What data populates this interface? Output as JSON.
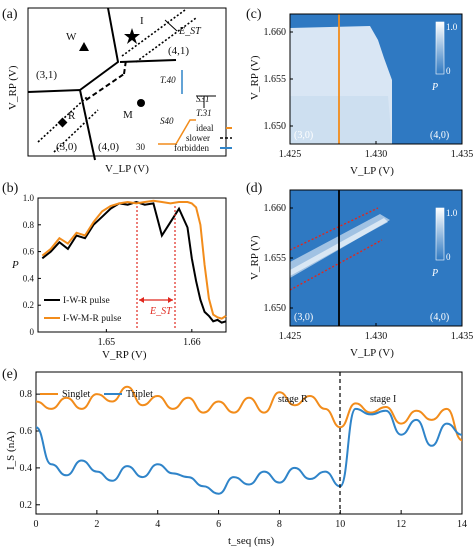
{
  "panels": {
    "a": {
      "label": "(a)",
      "xlabel": "V_LP (V)",
      "ylabel": "V_RP (V)",
      "regions": [
        "(3,1)",
        "(3,0)",
        "(4,0)",
        "(4,1)"
      ],
      "points": [
        "W",
        "I",
        "R",
        "M"
      ],
      "est_label": "E_ST",
      "pulse_labels": [
        "T.40",
        "S31",
        "T.31",
        "S40",
        "30"
      ],
      "legend": [
        "ideal",
        "slower",
        "forbidden"
      ],
      "legend_colors": [
        "#f28c1b",
        "#000000",
        "#2f84c9"
      ]
    },
    "b": {
      "label": "(b)",
      "ylabel": "P",
      "xlabel": "V_RP (V)",
      "legend": [
        "I-W-R pulse",
        "I-W-M-R pulse"
      ],
      "est_label": "E_ST",
      "xticks": [
        "1.65",
        "1.66"
      ],
      "yticks": [
        "0",
        "0.2",
        "0.4",
        "0.6",
        "0.8",
        "1.0"
      ]
    },
    "c": {
      "label": "(c)",
      "ylabel": "V_RP (V)",
      "xlabel": "V_LP (V)",
      "yticks": [
        "1.660",
        "1.655",
        "1.650"
      ],
      "xticks": [
        "1.425",
        "1.430",
        "1.435"
      ],
      "corner_labels": [
        "(3,0)",
        "(4,0)"
      ],
      "cbar_ticks": [
        "1.0",
        "0"
      ],
      "cbar_label": "P"
    },
    "d": {
      "label": "(d)",
      "ylabel": "V_RP (V)",
      "xlabel": "V_LP (V)",
      "yticks": [
        "1.660",
        "1.655",
        "1.650"
      ],
      "xticks": [
        "1.425",
        "1.430",
        "1.435"
      ],
      "corner_labels": [
        "(3,0)",
        "(4,0)"
      ],
      "cbar_ticks": [
        "1.0",
        "0"
      ],
      "cbar_label": "P"
    },
    "e": {
      "label": "(e)",
      "ylabel": "I_S (nA)",
      "xlabel": "t_seq (ms)",
      "legend": [
        "Singlet",
        "Triplet"
      ],
      "stage_labels": [
        "stage R",
        "stage I"
      ],
      "xticks": [
        "0",
        "2",
        "4",
        "6",
        "8",
        "10",
        "12",
        "14"
      ],
      "yticks": [
        "0.2",
        "0.4",
        "0.6",
        "0.8"
      ]
    }
  },
  "colors": {
    "orange": "#f28c1b",
    "blue": "#2f84c9",
    "black": "#000000",
    "red": "#e0281e",
    "map_blue": "#2f79c2"
  },
  "chart_data": [
    {
      "type": "line",
      "panel": "b",
      "xlabel": "V_RP (V)",
      "ylabel": "P",
      "xlim": [
        1.642,
        1.664
      ],
      "ylim": [
        0,
        1.0
      ],
      "series": [
        {
          "name": "I-W-R pulse",
          "color": "#000000",
          "x": [
            1.6425,
            1.6435,
            1.6445,
            1.6455,
            1.6465,
            1.6475,
            1.6485,
            1.6495,
            1.6505,
            1.6515,
            1.6525,
            1.6535,
            1.6545,
            1.6555,
            1.6565,
            1.6575,
            1.6585,
            1.6595,
            1.66,
            1.6605,
            1.661,
            1.6615,
            1.662,
            1.6625,
            1.663,
            1.6635,
            1.664
          ],
          "y": [
            0.55,
            0.6,
            0.67,
            0.62,
            0.72,
            0.7,
            0.8,
            0.86,
            0.92,
            0.96,
            0.95,
            0.97,
            0.95,
            0.96,
            0.72,
            0.82,
            0.92,
            0.78,
            0.55,
            0.38,
            0.24,
            0.15,
            0.12,
            0.08,
            0.09,
            0.07,
            0.08
          ]
        },
        {
          "name": "I-W-M-R pulse",
          "color": "#f28c1b",
          "x": [
            1.6425,
            1.6435,
            1.6445,
            1.6455,
            1.6465,
            1.6475,
            1.6485,
            1.6495,
            1.6505,
            1.6515,
            1.6525,
            1.6535,
            1.6545,
            1.6555,
            1.6565,
            1.6575,
            1.6585,
            1.6595,
            1.66,
            1.6605,
            1.661,
            1.6615,
            1.662,
            1.6625,
            1.663,
            1.6635,
            1.664
          ],
          "y": [
            0.57,
            0.62,
            0.7,
            0.66,
            0.74,
            0.72,
            0.82,
            0.9,
            0.94,
            0.96,
            0.97,
            0.96,
            0.97,
            0.98,
            0.97,
            0.96,
            0.97,
            0.97,
            0.96,
            0.93,
            0.8,
            0.5,
            0.25,
            0.13,
            0.11,
            0.1,
            0.12
          ]
        }
      ]
    },
    {
      "type": "line",
      "panel": "e",
      "xlabel": "t_seq (ms)",
      "ylabel": "I_S (nA)",
      "xlim": [
        0,
        14
      ],
      "ylim": [
        0.15,
        0.92
      ],
      "series": [
        {
          "name": "Singlet",
          "color": "#f28c1b",
          "x": [
            0,
            0.5,
            1,
            1.5,
            2,
            2.5,
            3,
            3.5,
            4,
            4.5,
            5,
            5.5,
            6,
            6.5,
            7,
            7.5,
            8,
            8.5,
            9,
            9.5,
            10,
            10.5,
            11,
            11.5,
            12,
            12.5,
            13,
            13.5,
            14
          ],
          "y": [
            0.76,
            0.72,
            0.78,
            0.72,
            0.8,
            0.76,
            0.84,
            0.74,
            0.79,
            0.72,
            0.78,
            0.7,
            0.76,
            0.7,
            0.78,
            0.7,
            0.81,
            0.74,
            0.79,
            0.72,
            0.62,
            0.75,
            0.7,
            0.73,
            0.64,
            0.71,
            0.66,
            0.72,
            0.55
          ]
        },
        {
          "name": "Triplet",
          "color": "#2f84c9",
          "x": [
            0,
            0.5,
            1,
            1.5,
            2,
            2.5,
            3,
            3.5,
            4,
            4.5,
            5,
            5.5,
            6,
            6.5,
            7,
            7.5,
            8,
            8.5,
            9,
            9.5,
            10,
            10.5,
            11,
            11.5,
            12,
            12.5,
            13,
            13.5,
            14
          ],
          "y": [
            0.62,
            0.42,
            0.36,
            0.44,
            0.38,
            0.33,
            0.41,
            0.35,
            0.42,
            0.37,
            0.35,
            0.3,
            0.26,
            0.35,
            0.31,
            0.38,
            0.32,
            0.4,
            0.34,
            0.38,
            0.3,
            0.72,
            0.69,
            0.71,
            0.58,
            0.66,
            0.52,
            0.64,
            0.58
          ]
        }
      ]
    }
  ]
}
